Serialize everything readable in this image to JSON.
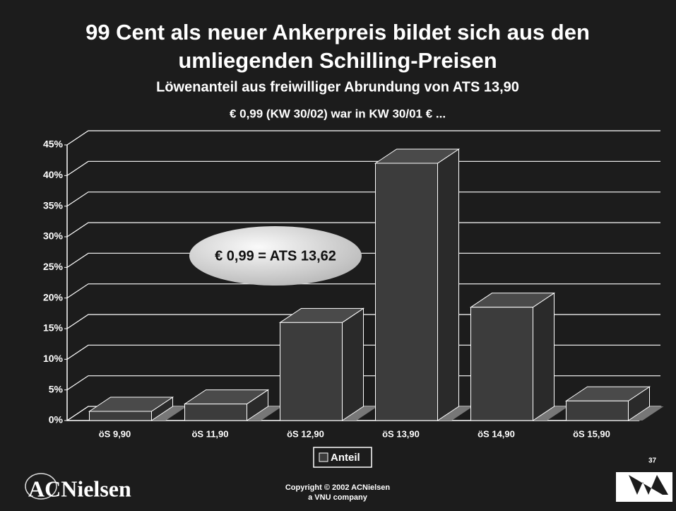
{
  "chart_data": {
    "type": "bar3d",
    "title": [
      "99 Cent als neuer Ankerpreis bildet sich aus den",
      "umliegenden Schilling-Preisen"
    ],
    "subtitle": "Löwenanteil aus freiwilliger Abrundung von ATS 13,90",
    "subtitle2": "€ 0,99 (KW 30/02) war in KW 30/01 € ...",
    "annotation": "€ 0,99 = ATS 13,62",
    "categories": [
      "öS 9,90",
      "öS 11,90",
      "öS 12,90",
      "öS 13,90",
      "öS 14,90",
      "öS 15,90"
    ],
    "series": [
      {
        "name": "Anteil",
        "color": "#3c3c3c",
        "values": [
          1.5,
          2.7,
          16,
          42,
          18.5,
          3.2
        ]
      }
    ],
    "ylim": [
      0,
      45
    ],
    "yticks": [
      {
        "value": 0,
        "label": "0%"
      },
      {
        "value": 5,
        "label": "5%"
      },
      {
        "value": 10,
        "label": "10%"
      },
      {
        "value": 15,
        "label": "15%"
      },
      {
        "value": 20,
        "label": "20%"
      },
      {
        "value": 25,
        "label": "25%"
      },
      {
        "value": 30,
        "label": "30%"
      },
      {
        "value": 35,
        "label": "35%"
      },
      {
        "value": 40,
        "label": "40%"
      },
      {
        "value": 45,
        "label": "45%"
      }
    ],
    "grid": true,
    "page_number": "37",
    "footer": [
      "Copyright © 2002 ACNielsen",
      "a VNU company"
    ],
    "logo": "ACNielsen"
  }
}
